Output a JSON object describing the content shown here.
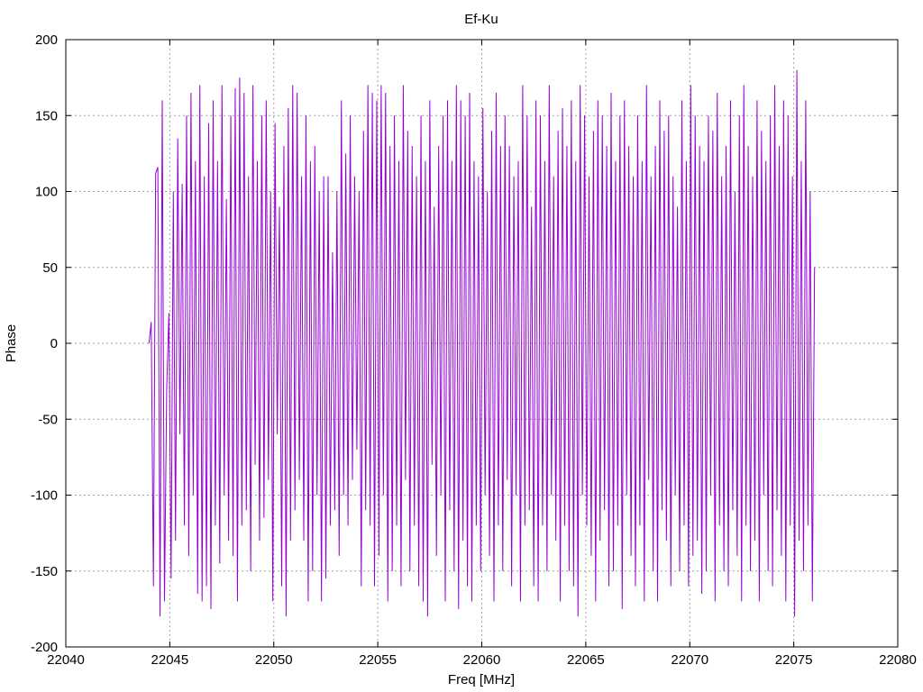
{
  "chart_data": {
    "type": "line",
    "title": "Ef-Ku",
    "xlabel": "Freq [MHz]",
    "ylabel": "Phase",
    "xlim": [
      22040,
      22080
    ],
    "ylim": [
      -200,
      200
    ],
    "xticks": [
      22040,
      22045,
      22050,
      22055,
      22060,
      22065,
      22070,
      22075,
      22080
    ],
    "yticks": [
      -200,
      -150,
      -100,
      -50,
      0,
      50,
      100,
      150,
      200
    ],
    "grid": true,
    "legend": "none",
    "series": [
      {
        "color": "#9400d3",
        "x_range": [
          22044,
          22076
        ],
        "y": [
          0,
          14,
          -160,
          112,
          116,
          -180,
          160,
          -170,
          -30,
          20,
          -155,
          100,
          -130,
          135,
          -60,
          105,
          -120,
          150,
          -140,
          165,
          -100,
          120,
          -165,
          170,
          -170,
          110,
          -160,
          145,
          -175,
          160,
          -120,
          120,
          -145,
          170,
          -100,
          95,
          -130,
          150,
          -140,
          168,
          -170,
          175,
          -120,
          165,
          -110,
          110,
          -150,
          170,
          -80,
          120,
          -130,
          150,
          -115,
          160,
          -90,
          100,
          -170,
          145,
          -60,
          90,
          -160,
          130,
          -180,
          155,
          -130,
          170,
          -110,
          165,
          -90,
          110,
          -130,
          150,
          -170,
          120,
          -150,
          130,
          -100,
          100,
          -170,
          110,
          -155,
          110,
          -120,
          60,
          -110,
          100,
          -140,
          160,
          -100,
          125,
          -120,
          150,
          -90,
          110,
          -70,
          100,
          -160,
          140,
          -110,
          170,
          -120,
          165,
          -160,
          160,
          -140,
          170,
          -100,
          165,
          -170,
          130,
          -150,
          150,
          -120,
          120,
          -160,
          170,
          -90,
          140,
          -150,
          130,
          -120,
          110,
          -160,
          150,
          -170,
          120,
          -180,
          160,
          -80,
          90,
          -140,
          130,
          -100,
          150,
          -170,
          160,
          -110,
          120,
          -150,
          170,
          -175,
          160,
          -130,
          150,
          -160,
          165,
          -170,
          120,
          -120,
          110,
          -150,
          155,
          -100,
          100,
          -140,
          140,
          -170,
          165,
          -120,
          130,
          -150,
          150,
          -90,
          130,
          -160,
          110,
          -100,
          120,
          -170,
          170,
          -120,
          150,
          -110,
          90,
          -160,
          160,
          -170,
          150,
          -120,
          120,
          -150,
          170,
          -100,
          110,
          -130,
          140,
          -170,
          155,
          -120,
          130,
          -150,
          160,
          -160,
          120,
          -180,
          170,
          -100,
          150,
          -120,
          110,
          -140,
          140,
          -170,
          160,
          -130,
          150,
          -110,
          130,
          -160,
          165,
          -150,
          120,
          -120,
          150,
          -175,
          160,
          -100,
          130,
          -140,
          110,
          -160,
          150,
          -120,
          120,
          -170,
          170,
          -90,
          110,
          -150,
          130,
          -170,
          160,
          -110,
          140,
          -130,
          150,
          -160,
          110,
          -100,
          90,
          -150,
          160,
          -120,
          120,
          -160,
          170,
          -140,
          150,
          -130,
          130,
          -165,
          120,
          -150,
          150,
          -100,
          140,
          -170,
          165,
          -120,
          110,
          -150,
          130,
          -160,
          160,
          -110,
          100,
          -140,
          150,
          -170,
          170,
          -120,
          130,
          -150,
          110,
          -130,
          160,
          -170,
          140,
          -100,
          120,
          -150,
          150,
          -160,
          170,
          -110,
          130,
          -140,
          160,
          -170,
          150,
          -120,
          110,
          -180,
          180,
          -130,
          120,
          -150,
          160,
          -120,
          100,
          -170,
          50
        ]
      }
    ]
  }
}
